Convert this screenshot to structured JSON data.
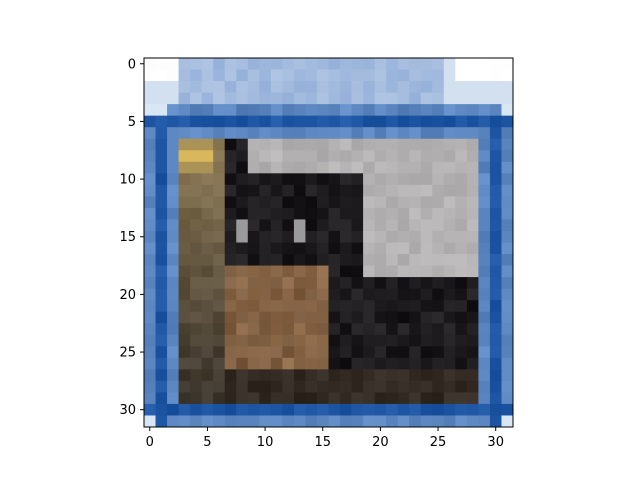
{
  "chart_data": {
    "type": "heatmap",
    "title": "",
    "xlabel": "",
    "ylabel": "",
    "xlim": [
      -0.5,
      31.5
    ],
    "ylim": [
      31.5,
      -0.5
    ],
    "grid": false,
    "legend": "none",
    "x_ticks": [
      {
        "value": 0,
        "label": "0"
      },
      {
        "value": 5,
        "label": "5"
      },
      {
        "value": 10,
        "label": "10"
      },
      {
        "value": 15,
        "label": "15"
      },
      {
        "value": 20,
        "label": "20"
      },
      {
        "value": 25,
        "label": "25"
      },
      {
        "value": 30,
        "label": "30"
      }
    ],
    "y_ticks": [
      {
        "value": 0,
        "label": "0"
      },
      {
        "value": 5,
        "label": "5"
      },
      {
        "value": 10,
        "label": "10"
      },
      {
        "value": 15,
        "label": "15"
      },
      {
        "value": 20,
        "label": "20"
      },
      {
        "value": 25,
        "label": "25"
      },
      {
        "value": 30,
        "label": "30"
      }
    ],
    "image_rows": 32,
    "image_cols": 32,
    "colors": {
      "background": "#ffffff",
      "frame_blue": "#1f56a3",
      "frame_light": "#5b86bf",
      "top_sky": "#d9e6f3",
      "top_band": "#8eaad6",
      "wall_light": "#b4b2b3",
      "shadow_dark": "#1c1a1c",
      "cat_brown": "#7a5a3d",
      "cat_fur_light": "#8f6c4c",
      "pole_tan": "#8d7a56",
      "yellow_accent": "#d8b85a",
      "eye_grey": "#9a9a9c"
    }
  }
}
